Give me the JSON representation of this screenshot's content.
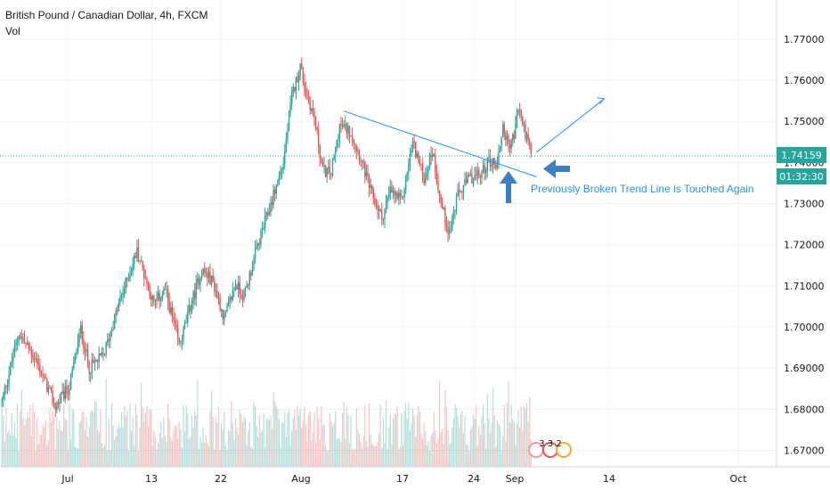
{
  "header": {
    "title": "British Pound / Canadian Dollar, 4h, FXCM",
    "indicator": "Vol"
  },
  "chart_data": {
    "type": "candlestick",
    "symbol": "British Pound / Canadian Dollar",
    "interval": "4h",
    "source": "FXCM",
    "ylim": [
      1.666,
      1.7795
    ],
    "y_ticks": [
      "1.77000",
      "1.76000",
      "1.75000",
      "1.74000",
      "1.73000",
      "1.72000",
      "1.71000",
      "1.70000",
      "1.69000",
      "1.68000",
      "1.67000"
    ],
    "x_ticks": [
      "Jul",
      "13",
      "22",
      "Aug",
      "17",
      "24",
      "Sep",
      "14",
      "Oct"
    ],
    "last_price": "1.74159",
    "countdown": "01:32:30",
    "price_path": [
      {
        "i": 0,
        "p": 1.682
      },
      {
        "i": 12,
        "p": 1.6985
      },
      {
        "i": 24,
        "p": 1.692
      },
      {
        "i": 38,
        "p": 1.6805
      },
      {
        "i": 48,
        "p": 1.6855
      },
      {
        "i": 56,
        "p": 1.6995
      },
      {
        "i": 62,
        "p": 1.69
      },
      {
        "i": 72,
        "p": 1.693
      },
      {
        "i": 84,
        "p": 1.7065
      },
      {
        "i": 96,
        "p": 1.7185
      },
      {
        "i": 108,
        "p": 1.7055
      },
      {
        "i": 116,
        "p": 1.709
      },
      {
        "i": 126,
        "p": 1.6955
      },
      {
        "i": 134,
        "p": 1.705
      },
      {
        "i": 142,
        "p": 1.714
      },
      {
        "i": 150,
        "p": 1.711
      },
      {
        "i": 158,
        "p": 1.702
      },
      {
        "i": 166,
        "p": 1.7105
      },
      {
        "i": 172,
        "p": 1.7075
      },
      {
        "i": 182,
        "p": 1.72
      },
      {
        "i": 192,
        "p": 1.731
      },
      {
        "i": 200,
        "p": 1.74
      },
      {
        "i": 206,
        "p": 1.756
      },
      {
        "i": 212,
        "p": 1.7635
      },
      {
        "i": 216,
        "p": 1.757
      },
      {
        "i": 222,
        "p": 1.751
      },
      {
        "i": 228,
        "p": 1.738
      },
      {
        "i": 234,
        "p": 1.7375
      },
      {
        "i": 240,
        "p": 1.749
      },
      {
        "i": 248,
        "p": 1.7475
      },
      {
        "i": 256,
        "p": 1.74
      },
      {
        "i": 262,
        "p": 1.733
      },
      {
        "i": 270,
        "p": 1.7265
      },
      {
        "i": 276,
        "p": 1.733
      },
      {
        "i": 284,
        "p": 1.7305
      },
      {
        "i": 292,
        "p": 1.745
      },
      {
        "i": 300,
        "p": 1.736
      },
      {
        "i": 306,
        "p": 1.743
      },
      {
        "i": 312,
        "p": 1.73
      },
      {
        "i": 318,
        "p": 1.723
      },
      {
        "i": 324,
        "p": 1.732
      },
      {
        "i": 332,
        "p": 1.736
      },
      {
        "i": 340,
        "p": 1.737
      },
      {
        "i": 346,
        "p": 1.7405
      },
      {
        "i": 352,
        "p": 1.7395
      },
      {
        "i": 356,
        "p": 1.749
      },
      {
        "i": 360,
        "p": 1.744
      },
      {
        "i": 364,
        "p": 1.7465
      },
      {
        "i": 367,
        "p": 1.7535
      },
      {
        "i": 370,
        "p": 1.7495
      },
      {
        "i": 373,
        "p": 1.746
      },
      {
        "i": 376,
        "p": 1.7415
      }
    ],
    "trend_line": {
      "from": {
        "i": 243,
        "p": 1.7525
      },
      "to": {
        "i": 380,
        "p": 1.7365
      }
    },
    "projection_arrow": {
      "from": {
        "i": 380,
        "p": 1.7425
      },
      "to": {
        "i": 428,
        "p": 1.7555
      }
    },
    "annotation": "Previously Broken Trend Line is Touched Again",
    "events_badge": "3 3 2",
    "colors": {
      "up": "#26a69a",
      "down": "#ef5350",
      "trend": "#2196f3",
      "price_tag": "#26a69a",
      "grid": "#f0f3fa"
    }
  }
}
